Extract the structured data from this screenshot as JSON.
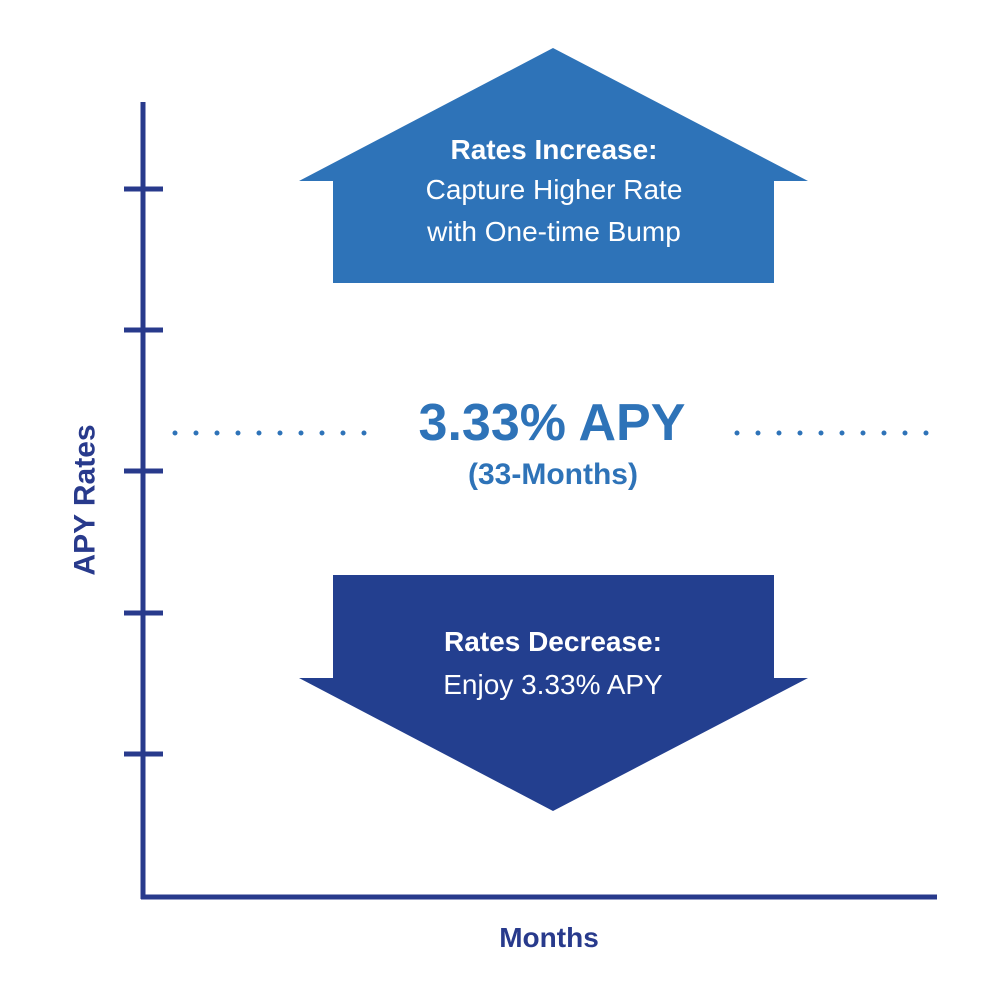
{
  "colors": {
    "axis": "#283a8c",
    "up_arrow": "#2e73b8",
    "down_arrow": "#233f8f",
    "rate_text": "#2e73b8",
    "arrow_text": "#ffffff"
  },
  "axes": {
    "y_label": "APY Rates",
    "x_label": "Months",
    "tick_count": 5
  },
  "rate": {
    "value_label": "3.33% APY",
    "term_label": "(33-Months)"
  },
  "up_arrow": {
    "title": "Rates Increase:",
    "line1": "Capture Higher Rate",
    "line2": "with One-time Bump"
  },
  "down_arrow": {
    "title": "Rates Decrease:",
    "line1": "Enjoy 3.33% APY"
  }
}
